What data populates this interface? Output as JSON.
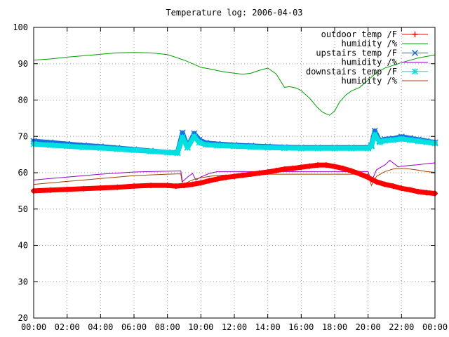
{
  "chart_data": {
    "type": "line",
    "title": "Temperature log: 2006-04-03",
    "xlabel": "",
    "ylabel": "",
    "xlim": [
      0,
      24
    ],
    "ylim": [
      20,
      100
    ],
    "grid": true,
    "legend_position": "top-right",
    "x_tick_labels": [
      "00:00",
      "02:00",
      "04:00",
      "06:00",
      "08:00",
      "10:00",
      "12:00",
      "14:00",
      "16:00",
      "18:00",
      "20:00",
      "22:00",
      "00:00"
    ],
    "y_tick_labels": [
      "20",
      "30",
      "40",
      "50",
      "60",
      "70",
      "80",
      "90",
      "100"
    ],
    "series": [
      {
        "name": "outdoor temp /F",
        "color": "#ff0000",
        "marker": "plus",
        "x": [
          0,
          1,
          2,
          3,
          4,
          5,
          6,
          7,
          8,
          8.5,
          9,
          9.5,
          10,
          10.5,
          11,
          11.5,
          12,
          12.5,
          13,
          13.5,
          14,
          14.5,
          15,
          15.5,
          16,
          16.5,
          17,
          17.5,
          18,
          18.5,
          19,
          19.5,
          20,
          20.5,
          21,
          21.5,
          22,
          22.5,
          23,
          23.5,
          24
        ],
        "values": [
          55,
          55.2,
          55.4,
          55.6,
          55.8,
          56,
          56.3,
          56.5,
          56.5,
          56.3,
          56.5,
          56.8,
          57.2,
          57.8,
          58.3,
          58.7,
          59,
          59.3,
          59.6,
          59.9,
          60.2,
          60.6,
          61,
          61.2,
          61.5,
          61.8,
          62.1,
          62.1,
          61.7,
          61.2,
          60.5,
          59.7,
          58.7,
          57.5,
          56.8,
          56.3,
          55.7,
          55.3,
          54.8,
          54.5,
          54.3
        ]
      },
      {
        "name": "humidity /%",
        "color": "#00a000",
        "marker": "none",
        "x": [
          0,
          1,
          2,
          3,
          4,
          5,
          6,
          7,
          8,
          9,
          10,
          10.5,
          11,
          11.5,
          12,
          12.5,
          13,
          13.5,
          14,
          14.5,
          15,
          15.3,
          15.7,
          16,
          16.5,
          17,
          17.3,
          17.7,
          18,
          18.3,
          18.7,
          19,
          19.5,
          20,
          20.5,
          21,
          22,
          23,
          24
        ],
        "values": [
          91,
          91.3,
          91.8,
          92.2,
          92.6,
          93,
          93.1,
          93,
          92.5,
          91,
          89,
          88.6,
          88.1,
          87.7,
          87.4,
          87.1,
          87.4,
          88.2,
          88.8,
          87.2,
          83.5,
          83.7,
          83.3,
          82.6,
          80.5,
          77.8,
          76.6,
          75.8,
          77,
          79.5,
          81.5,
          82.5,
          83.5,
          85.5,
          87.5,
          88.8,
          90.3,
          91.6,
          92.4
        ]
      },
      {
        "name": "upstairs temp /F",
        "color": "#1a6fe0",
        "marker": "cross",
        "x": [
          0,
          1,
          2,
          3,
          4,
          5,
          6,
          7,
          8,
          8.6,
          8.9,
          9.2,
          9.6,
          9.9,
          10.3,
          11,
          12,
          13,
          14,
          15,
          16,
          17,
          18,
          19,
          20,
          20.2,
          20.4,
          20.7,
          21,
          21.5,
          22,
          22.5,
          23,
          23.5,
          24
        ],
        "values": [
          68.7,
          68.3,
          67.9,
          67.5,
          67.2,
          66.8,
          66.4,
          66,
          65.6,
          65.5,
          71,
          67,
          70.8,
          69,
          68.2,
          67.9,
          67.6,
          67.4,
          67.2,
          67,
          66.9,
          66.9,
          66.9,
          66.9,
          66.9,
          67.5,
          71.5,
          68.7,
          69.2,
          69.4,
          69.9,
          69.5,
          69.1,
          68.7,
          68.3
        ]
      },
      {
        "name": "humidity /%",
        "color": "#9900cc",
        "marker": "none",
        "x": [
          0,
          1,
          2,
          3,
          4,
          5,
          6,
          7,
          8,
          8.8,
          8.9,
          9.2,
          9.5,
          9.7,
          10,
          10.5,
          11,
          12,
          13,
          14,
          15,
          16,
          17,
          18,
          19,
          20,
          20.2,
          20.5,
          20.8,
          21,
          21.3,
          21.8,
          22,
          22.5,
          23,
          23.5,
          24
        ],
        "values": [
          58,
          58.4,
          58.8,
          59.2,
          59.6,
          59.9,
          60.2,
          60.3,
          60.4,
          60.5,
          57.5,
          58.8,
          59.8,
          58,
          58.8,
          59.8,
          60.3,
          60.3,
          60.3,
          60.3,
          60.3,
          60.3,
          60.3,
          60.3,
          60.3,
          60.3,
          57.5,
          60.8,
          61.6,
          62.1,
          63.4,
          61.6,
          61.8,
          62,
          62.2,
          62.5,
          62.7
        ]
      },
      {
        "name": "downstairs temp /F",
        "color": "#00e0e0",
        "marker": "star",
        "x": [
          0,
          1,
          2,
          3,
          4,
          5,
          6,
          7,
          8,
          8.6,
          8.9,
          9.2,
          9.6,
          9.9,
          10.3,
          11,
          12,
          13,
          14,
          15,
          16,
          17,
          18,
          19,
          20,
          20.2,
          20.4,
          20.7,
          21,
          21.5,
          22,
          22.5,
          23,
          23.5,
          24
        ],
        "values": [
          67.9,
          67.6,
          67.3,
          67,
          66.8,
          66.5,
          66.2,
          65.9,
          65.6,
          65.4,
          69.8,
          66.9,
          70,
          68.3,
          67.7,
          67.5,
          67.3,
          67.1,
          66.9,
          66.8,
          66.7,
          66.7,
          66.7,
          66.7,
          66.7,
          67.3,
          70.5,
          68.4,
          68.8,
          69,
          69.3,
          69,
          68.7,
          68.4,
          68.1
        ]
      },
      {
        "name": "humidity /%",
        "color": "#a04000",
        "marker": "none",
        "x": [
          0,
          1,
          2,
          3,
          4,
          5,
          6,
          7,
          8,
          8.8,
          8.9,
          9.3,
          9.6,
          10,
          10.5,
          11,
          12,
          13,
          14,
          15,
          16,
          17,
          18,
          19,
          20,
          20.2,
          20.5,
          21,
          21.5,
          22,
          22.5,
          23,
          23.5,
          24
        ],
        "values": [
          56.8,
          57.2,
          57.6,
          58,
          58.4,
          58.8,
          59.2,
          59.4,
          59.6,
          59.7,
          56.7,
          57.6,
          58.2,
          58.6,
          59,
          59.3,
          59.4,
          59.5,
          59.6,
          59.6,
          59.6,
          59.6,
          59.6,
          59.6,
          59.6,
          56.5,
          59,
          60.3,
          61,
          61.2,
          61,
          60.7,
          60.3,
          60.1
        ]
      }
    ]
  }
}
